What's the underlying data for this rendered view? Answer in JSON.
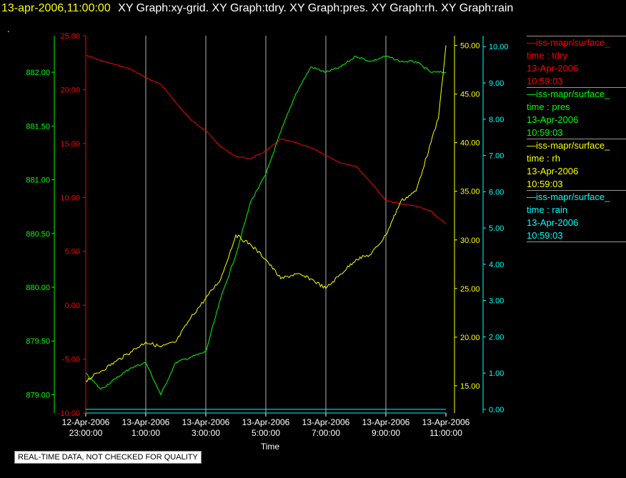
{
  "header": {
    "timestamp": "13-apr-2006,11:00:00",
    "graphs": "XY Graph:xy-grid.  XY Graph:tdry.  XY Graph:pres.  XY Graph:rh.  XY Graph:rain",
    "dot": "."
  },
  "legend": [
    {
      "name": "iss-mapr/surface_",
      "var": "time : tdry",
      "date": "13-Apr-2006",
      "time": "10:59:03",
      "color": "#ff0000"
    },
    {
      "name": "iss-mapr/surface_",
      "var": "time : pres",
      "date": "13-Apr-2006",
      "time": "10:59:03",
      "color": "#00ff00"
    },
    {
      "name": "iss-mapr/surface_",
      "var": "time : rh",
      "date": "13-Apr-2006",
      "time": "10:59:03",
      "color": "#ffff00"
    },
    {
      "name": "iss-mapr/surface_",
      "var": "time : rain",
      "date": "13-Apr-2006",
      "time": "10:59:03",
      "color": "#00ffff"
    }
  ],
  "notice": "REAL-TIME DATA, NOT CHECKED FOR QUALITY",
  "chart_data": {
    "type": "line",
    "xlabel": "Time",
    "x_ticks": [
      [
        "12-Apr-2006",
        "23:00:00"
      ],
      [
        "13-Apr-2006",
        "1:00:00"
      ],
      [
        "13-Apr-2006",
        "3:00:00"
      ],
      [
        "13-Apr-2006",
        "5:00:00"
      ],
      [
        "13-Apr-2006",
        "7:00:00"
      ],
      [
        "13-Apr-2006",
        "9:00:00"
      ],
      [
        "13-Apr-2006",
        "11:00:00"
      ]
    ],
    "x_start": "12-Apr-2006 23:00:00",
    "x_end": "13-Apr-2006 11:00:00",
    "grid": true,
    "axes": [
      {
        "var": "pres",
        "color": "#00ff00",
        "side": "left",
        "ylim": [
          878.83,
          882.34
        ],
        "ticks": [
          "879.00",
          "879.50",
          "880.00",
          "880.50",
          "881.00",
          "881.50",
          "882.00"
        ]
      },
      {
        "var": "tdry",
        "color": "#ff0000",
        "side": "left",
        "ylim": [
          -10,
          25
        ],
        "ticks": [
          "-10.00",
          "-5.00",
          "0.00",
          "5.00",
          "10.00",
          "15.00",
          "20.00",
          "25.00"
        ]
      },
      {
        "var": "rh",
        "color": "#ffff00",
        "side": "right",
        "ylim": [
          12.2,
          51.0
        ],
        "ticks": [
          "15.00",
          "20.00",
          "25.00",
          "30.00",
          "35.00",
          "40.00",
          "45.00",
          "50.00"
        ]
      },
      {
        "var": "rain",
        "color": "#00ffff",
        "side": "right",
        "ylim": [
          -0.1,
          10.3
        ],
        "ticks": [
          "0.00",
          "1.00",
          "2.00",
          "3.00",
          "4.00",
          "5.00",
          "6.00",
          "7.00",
          "8.00",
          "9.00",
          "10.00"
        ]
      }
    ],
    "series": [
      {
        "name": "tdry",
        "color": "#ff0000",
        "axis": "tdry",
        "x": [
          "12-Apr-2006 23:00",
          "12-Apr-2006 23:30",
          "13-Apr-2006 00:00",
          "13-Apr-2006 00:30",
          "13-Apr-2006 01:00",
          "13-Apr-2006 01:30",
          "13-Apr-2006 02:00",
          "13-Apr-2006 02:30",
          "13-Apr-2006 03:00",
          "13-Apr-2006 03:30",
          "13-Apr-2006 04:00",
          "13-Apr-2006 04:30",
          "13-Apr-2006 05:00",
          "13-Apr-2006 05:30",
          "13-Apr-2006 06:00",
          "13-Apr-2006 06:30",
          "13-Apr-2006 07:00",
          "13-Apr-2006 07:30",
          "13-Apr-2006 08:00",
          "13-Apr-2006 08:30",
          "13-Apr-2006 09:00",
          "13-Apr-2006 09:30",
          "13-Apr-2006 10:00",
          "13-Apr-2006 10:30",
          "13-Apr-2006 11:00"
        ],
        "values": [
          23.2,
          22.7,
          22.3,
          21.9,
          21.1,
          20.5,
          18.8,
          17.2,
          16.2,
          14.7,
          13.8,
          13.6,
          14.3,
          15.4,
          15.1,
          14.6,
          13.9,
          13.2,
          12.9,
          11.4,
          9.7,
          9.4,
          9.2,
          8.7,
          7.5
        ]
      },
      {
        "name": "pres",
        "color": "#00ff00",
        "axis": "pres",
        "x": [
          "12-Apr-2006 23:00",
          "12-Apr-2006 23:30",
          "13-Apr-2006 00:00",
          "13-Apr-2006 00:30",
          "13-Apr-2006 01:00",
          "13-Apr-2006 01:30",
          "13-Apr-2006 02:00",
          "13-Apr-2006 02:30",
          "13-Apr-2006 03:00",
          "13-Apr-2006 03:30",
          "13-Apr-2006 04:00",
          "13-Apr-2006 04:30",
          "13-Apr-2006 05:00",
          "13-Apr-2006 05:30",
          "13-Apr-2006 06:00",
          "13-Apr-2006 06:30",
          "13-Apr-2006 07:00",
          "13-Apr-2006 07:30",
          "13-Apr-2006 08:00",
          "13-Apr-2006 08:30",
          "13-Apr-2006 09:00",
          "13-Apr-2006 09:30",
          "13-Apr-2006 10:00",
          "13-Apr-2006 10:30",
          "13-Apr-2006 11:00"
        ],
        "values": [
          879.2,
          879.05,
          879.15,
          879.25,
          879.3,
          879.0,
          879.3,
          879.35,
          879.4,
          879.9,
          880.3,
          880.8,
          881.05,
          881.45,
          881.8,
          882.05,
          882.0,
          882.05,
          882.15,
          882.1,
          882.15,
          882.1,
          882.1,
          882.0,
          882.0
        ]
      },
      {
        "name": "rh",
        "color": "#ffff00",
        "axis": "rh",
        "x": [
          "12-Apr-2006 23:00",
          "12-Apr-2006 23:30",
          "13-Apr-2006 00:00",
          "13-Apr-2006 00:30",
          "13-Apr-2006 01:00",
          "13-Apr-2006 01:30",
          "13-Apr-2006 02:00",
          "13-Apr-2006 02:30",
          "13-Apr-2006 03:00",
          "13-Apr-2006 03:30",
          "13-Apr-2006 04:00",
          "13-Apr-2006 04:30",
          "13-Apr-2006 05:00",
          "13-Apr-2006 05:30",
          "13-Apr-2006 06:00",
          "13-Apr-2006 06:30",
          "13-Apr-2006 07:00",
          "13-Apr-2006 07:30",
          "13-Apr-2006 08:00",
          "13-Apr-2006 08:30",
          "13-Apr-2006 09:00",
          "13-Apr-2006 09:30",
          "13-Apr-2006 10:00",
          "13-Apr-2006 10:30",
          "13-Apr-2006 10:45",
          "13-Apr-2006 11:00"
        ],
        "values": [
          15.5,
          16.5,
          17.5,
          18.5,
          19.5,
          19.0,
          19.5,
          22.0,
          24.0,
          26.0,
          30.5,
          29.5,
          28.0,
          26.0,
          26.5,
          26.0,
          25.0,
          26.5,
          28.0,
          28.5,
          30.5,
          34.0,
          35.0,
          40.0,
          42.5,
          50.0
        ]
      },
      {
        "name": "rain",
        "color": "#00ffff",
        "axis": "rain",
        "x": [
          "12-Apr-2006 23:00",
          "13-Apr-2006 11:00"
        ],
        "values": [
          0.0,
          0.0
        ]
      }
    ]
  }
}
